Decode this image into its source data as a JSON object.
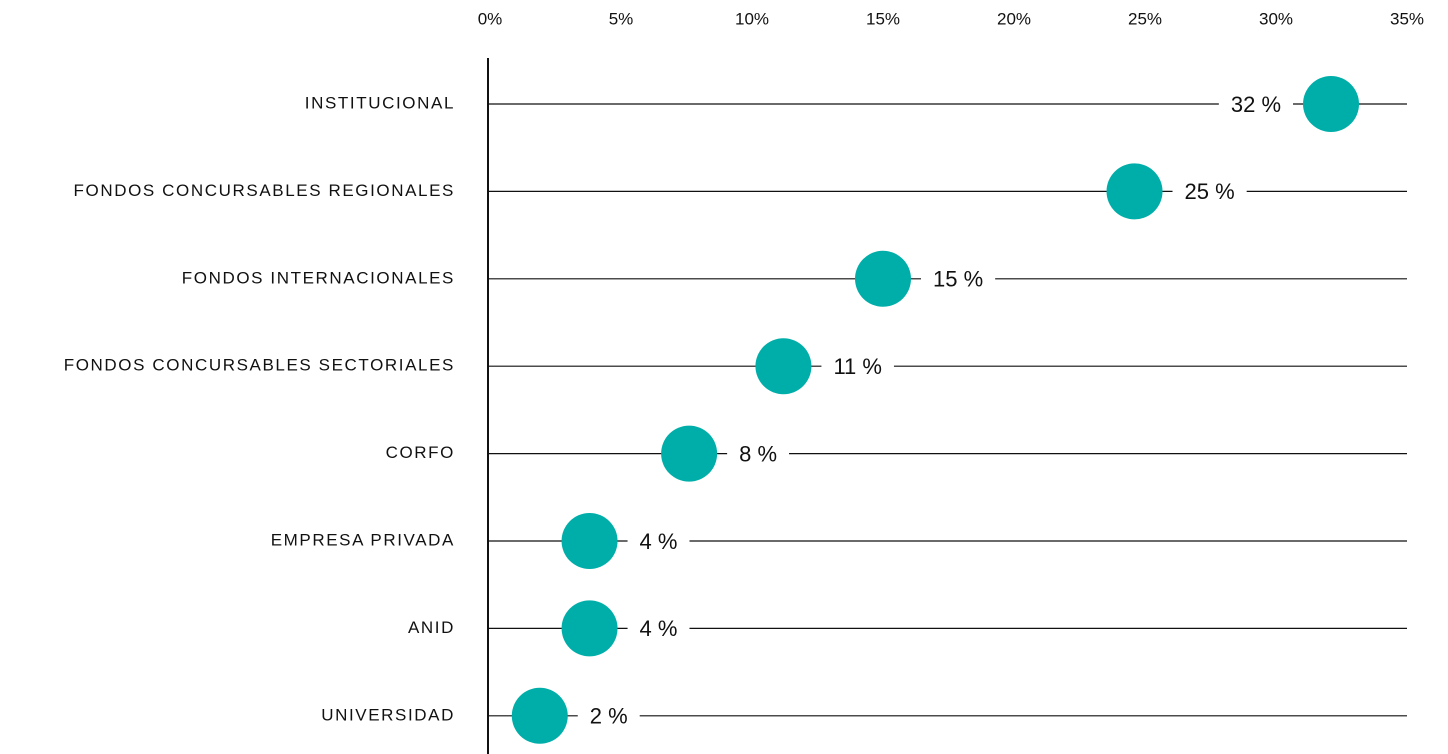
{
  "chart_data": {
    "type": "dot",
    "categories": [
      "INSTITUCIONAL",
      "FONDOS CONCURSABLES REGIONALES",
      "FONDOS INTERNACIONALES",
      "FONDOS CONCURSABLES SECTORIALES",
      "CORFO",
      "EMPRESA PRIVADA",
      "ANID",
      "UNIVERSIDAD"
    ],
    "values": [
      32.1,
      24.6,
      15,
      11.2,
      7.6,
      3.8,
      3.8,
      1.9
    ],
    "value_labels": [
      "32 %",
      "25 %",
      "15 %",
      "11 %",
      "8 %",
      "4 %",
      "4 %",
      "2 %"
    ],
    "color": "#00aea9",
    "xlim": [
      0,
      35
    ],
    "xticks": [
      {
        "value": 0,
        "label": "0%"
      },
      {
        "value": 5,
        "label": "5%"
      },
      {
        "value": 10,
        "label": "10%"
      },
      {
        "value": 15,
        "label": "15%"
      },
      {
        "value": 20,
        "label": "20%"
      },
      {
        "value": 25,
        "label": "25%"
      },
      {
        "value": 30,
        "label": "30%"
      },
      {
        "value": 35,
        "label": "35%"
      }
    ]
  }
}
